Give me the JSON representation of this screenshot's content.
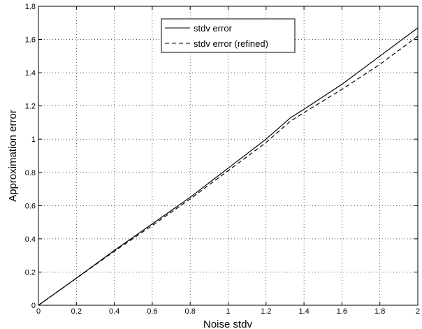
{
  "chart_data": {
    "type": "line",
    "title": "",
    "xlabel": "Noise stdv",
    "ylabel": "Approximation error",
    "xlim": [
      0,
      2
    ],
    "ylim": [
      0,
      1.8
    ],
    "x_ticks": [
      0,
      0.2,
      0.4,
      0.6,
      0.8,
      1,
      1.2,
      1.4,
      1.6,
      1.8,
      2
    ],
    "y_ticks": [
      0,
      0.2,
      0.4,
      0.6,
      0.8,
      1,
      1.2,
      1.4,
      1.6,
      1.8
    ],
    "x_tick_labels": [
      "0",
      "0.2",
      "0.4",
      "0.6",
      "0.8",
      "1",
      "1.2",
      "1.4",
      "1.6",
      "1.8",
      "2"
    ],
    "y_tick_labels": [
      "0",
      "0.2",
      "0.4",
      "0.6",
      "0.8",
      "1",
      "1.2",
      "1.4",
      "1.6",
      "1.8"
    ],
    "grid": true,
    "legend_position": "top-center",
    "x": [
      0,
      0.2,
      0.4,
      0.6,
      0.8,
      1.0,
      1.2,
      1.33,
      1.4,
      1.6,
      1.8,
      2.0
    ],
    "series": [
      {
        "name": "stdv error",
        "style": "solid",
        "color": "#000000",
        "values": [
          0,
          0.163,
          0.33,
          0.49,
          0.65,
          0.825,
          1.0,
          1.13,
          1.18,
          1.33,
          1.5,
          1.67
        ]
      },
      {
        "name": "stdv error (refined)",
        "style": "dashed",
        "color": "#000000",
        "values": [
          0,
          0.162,
          0.325,
          0.48,
          0.64,
          0.81,
          0.98,
          1.11,
          1.16,
          1.3,
          1.45,
          1.62
        ]
      }
    ]
  }
}
